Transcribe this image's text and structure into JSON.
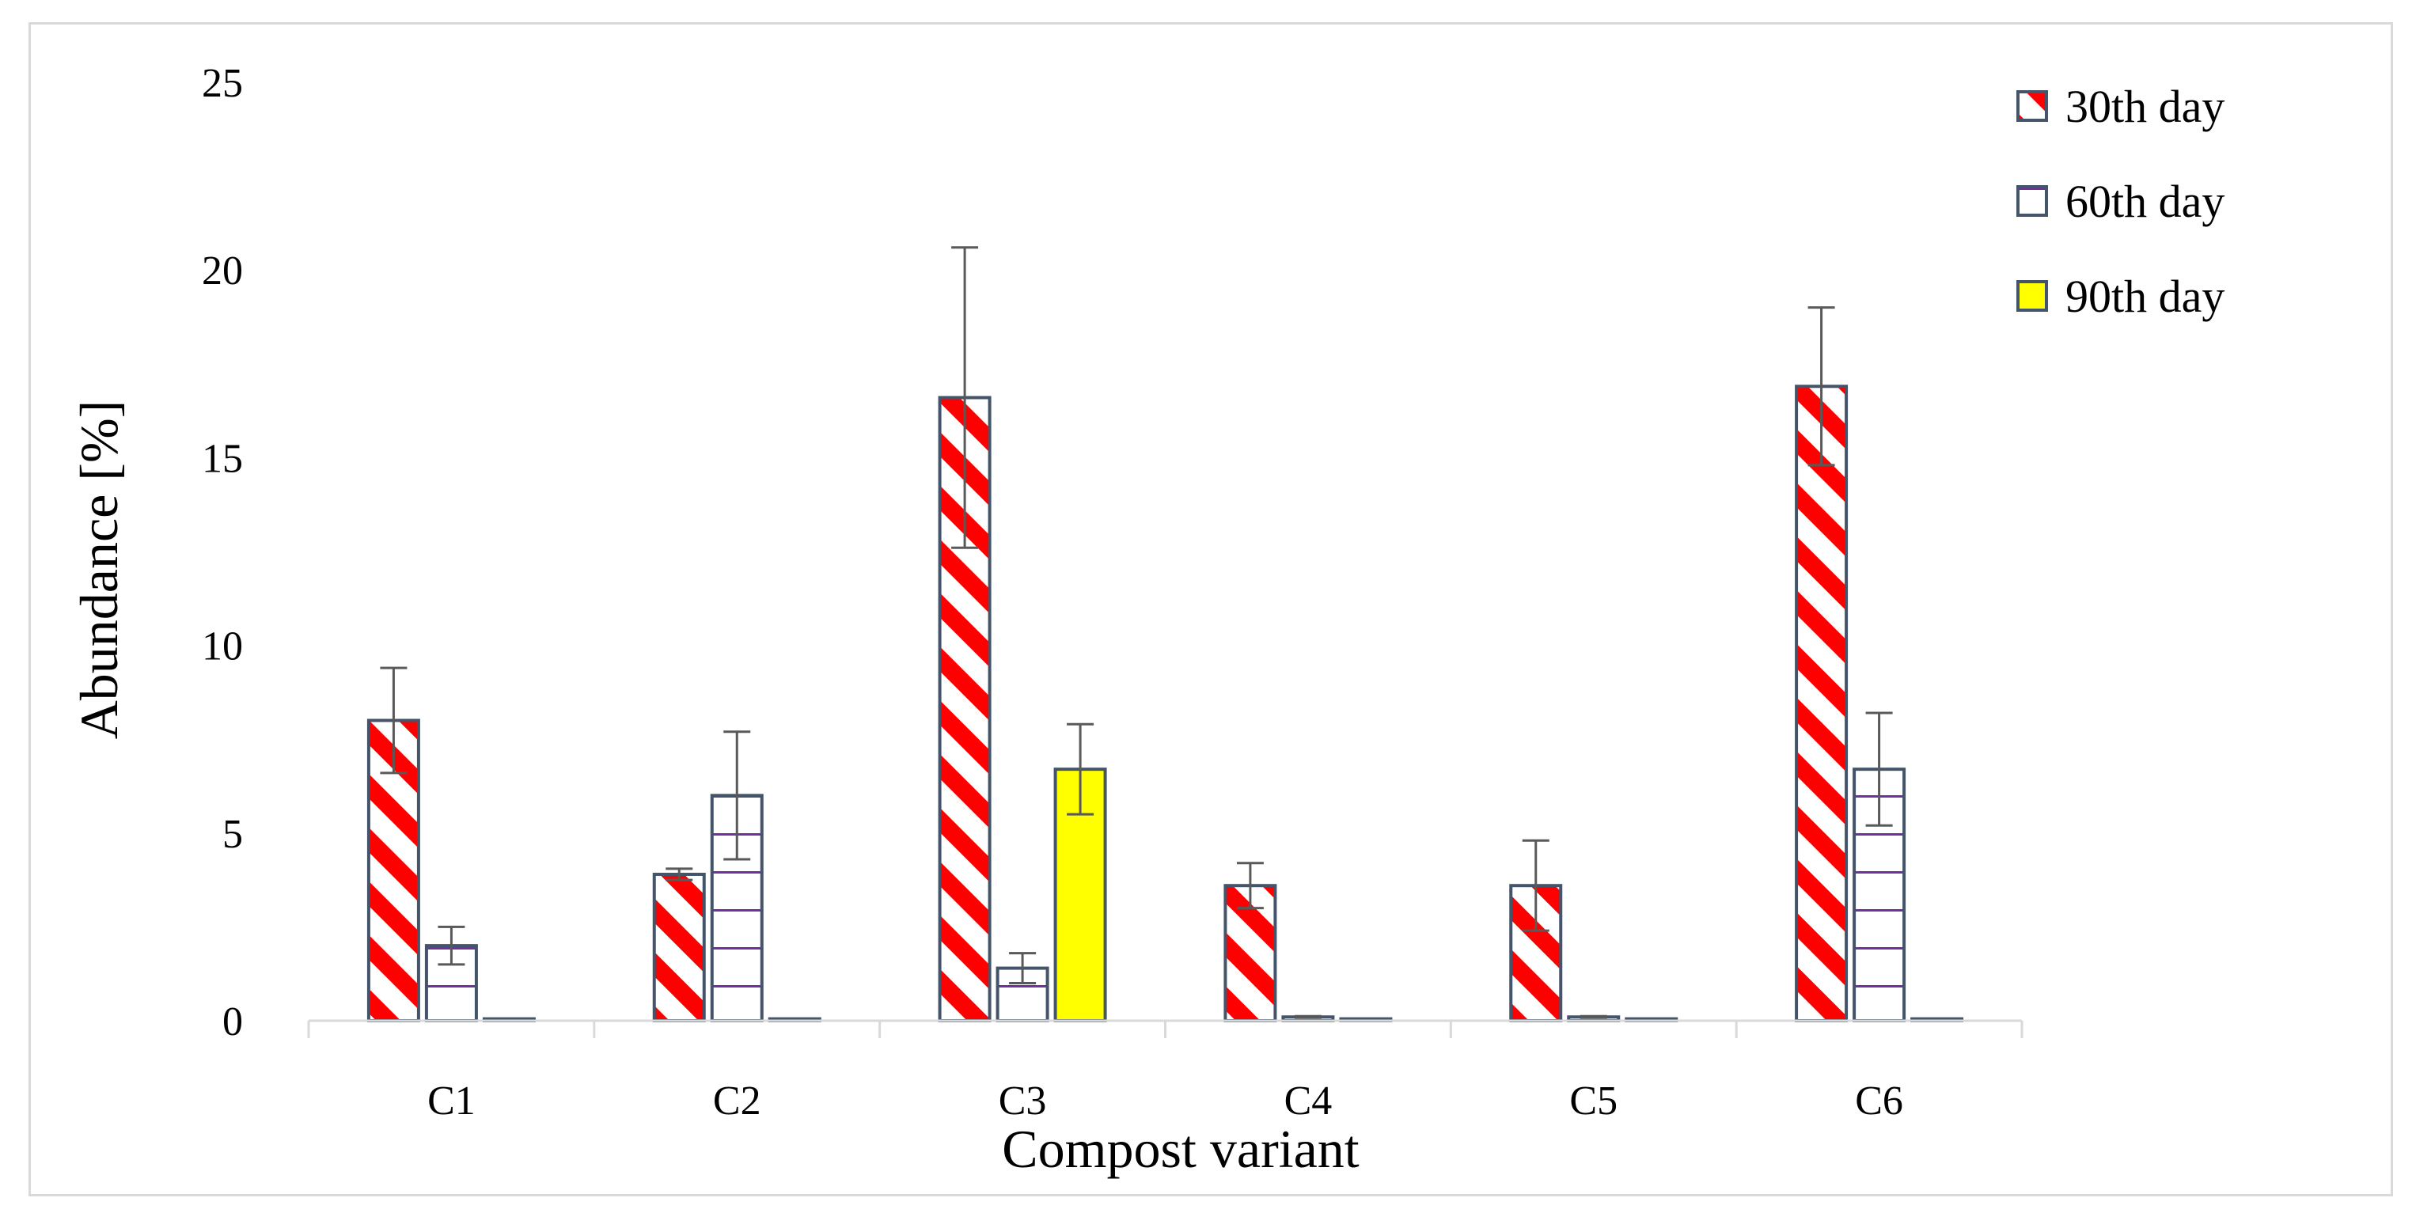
{
  "chart_data": {
    "type": "bar",
    "title": "",
    "xlabel": "Compost variant",
    "ylabel": "Abundance [%]",
    "ylim": [
      0,
      25
    ],
    "yticks": [
      0,
      5,
      10,
      15,
      20,
      25
    ],
    "grid": false,
    "legend_position": "top-right",
    "categories": [
      "C1",
      "C2",
      "C3",
      "C4",
      "C5",
      "C6"
    ],
    "series": [
      {
        "name": "30th day",
        "pattern": "red-diagonal-stripes",
        "fill_color": "#ff0000",
        "edge_color": "#44546a",
        "values": [
          8.0,
          3.9,
          16.6,
          3.6,
          3.6,
          16.9
        ],
        "errors": [
          1.4,
          0.15,
          4.0,
          0.6,
          1.2,
          2.1
        ]
      },
      {
        "name": "60th day",
        "pattern": "purple-horizontal-lines",
        "fill_color": "#7030a0",
        "edge_color": "#44546a",
        "values": [
          2.0,
          6.0,
          1.4,
          0.1,
          0.1,
          6.7
        ],
        "errors": [
          0.5,
          1.7,
          0.4,
          0.02,
          0.02,
          1.5
        ]
      },
      {
        "name": "90th day",
        "pattern": "solid",
        "fill_color": "#ffff00",
        "edge_color": "#44546a",
        "values": [
          0.05,
          0.05,
          6.7,
          0.05,
          0.05,
          0.05
        ],
        "errors": [
          0,
          0,
          1.2,
          0,
          0,
          0
        ]
      }
    ]
  }
}
